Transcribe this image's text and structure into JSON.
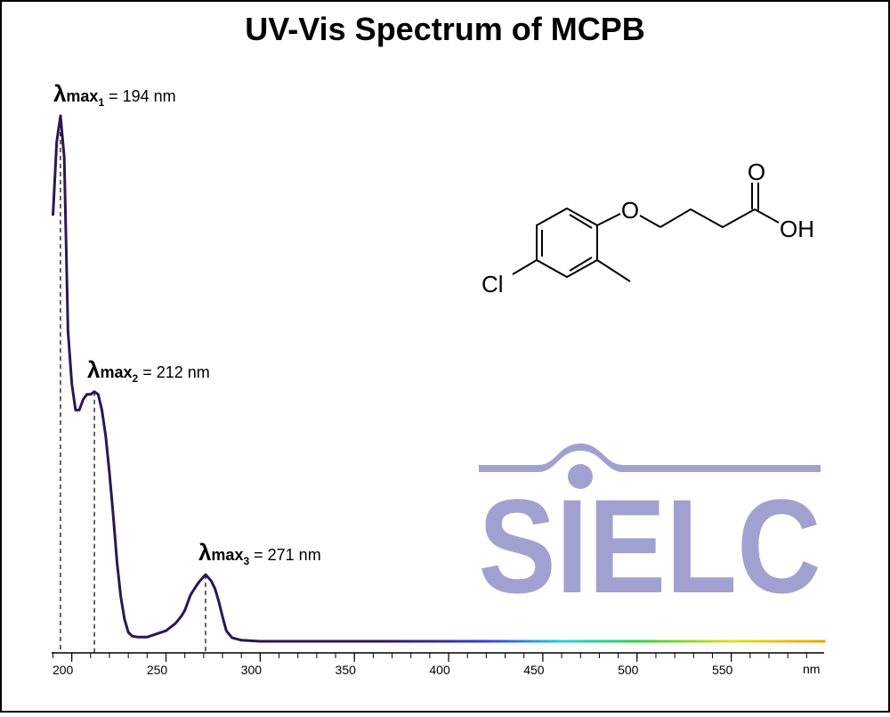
{
  "chart_data": {
    "type": "line",
    "title": "UV-Vis Spectrum of MCPB",
    "x": [
      190,
      192,
      194,
      196,
      198,
      200,
      202,
      204,
      206,
      208,
      210,
      212,
      214,
      216,
      218,
      220,
      222,
      224,
      226,
      228,
      230,
      232,
      235,
      240,
      245,
      250,
      255,
      258,
      260,
      263,
      266,
      268,
      271,
      274,
      276,
      278,
      280,
      282,
      285,
      290,
      300,
      600
    ],
    "series": [
      {
        "color": "#2c1654",
        "values": [
          0.81,
          0.95,
          1.0,
          0.92,
          0.59,
          0.49,
          0.44,
          0.44,
          0.46,
          0.47,
          0.47,
          0.475,
          0.47,
          0.44,
          0.39,
          0.32,
          0.24,
          0.15,
          0.085,
          0.042,
          0.017,
          0.01,
          0.008,
          0.008,
          0.014,
          0.02,
          0.034,
          0.047,
          0.059,
          0.088,
          0.105,
          0.115,
          0.127,
          0.115,
          0.1,
          0.076,
          0.047,
          0.02,
          0.007,
          0.002,
          0,
          0
        ]
      }
    ],
    "xlim": [
      189.3,
      599.3
    ],
    "ylim": [
      0,
      1
    ],
    "xticks": [
      200,
      250,
      300,
      350,
      400,
      450,
      500,
      550
    ],
    "x_minor_ticks": [
      190,
      200,
      210,
      220,
      230,
      240,
      250,
      260,
      270,
      280,
      290,
      300,
      310,
      320,
      330,
      340,
      350,
      360,
      370,
      380,
      390,
      400,
      410,
      420,
      430,
      440,
      450,
      460,
      470,
      480,
      490,
      500,
      510,
      520,
      530,
      540,
      550,
      560,
      570,
      580,
      590
    ],
    "xlabel": "nm",
    "annotations": [
      {
        "symbol": "λ",
        "label": "max",
        "sub": "1",
        "text": "= 194 nm",
        "x": 194
      },
      {
        "symbol": "λ",
        "label": "max",
        "sub": "2",
        "text": "= 212 nm",
        "x": 212
      },
      {
        "symbol": "λ",
        "label": "max",
        "sub": "3",
        "text": "= 271 nm",
        "x": 271
      }
    ],
    "structure_labels": [
      "O",
      "O",
      "OH",
      "Cl"
    ],
    "logo": "SIELC"
  }
}
